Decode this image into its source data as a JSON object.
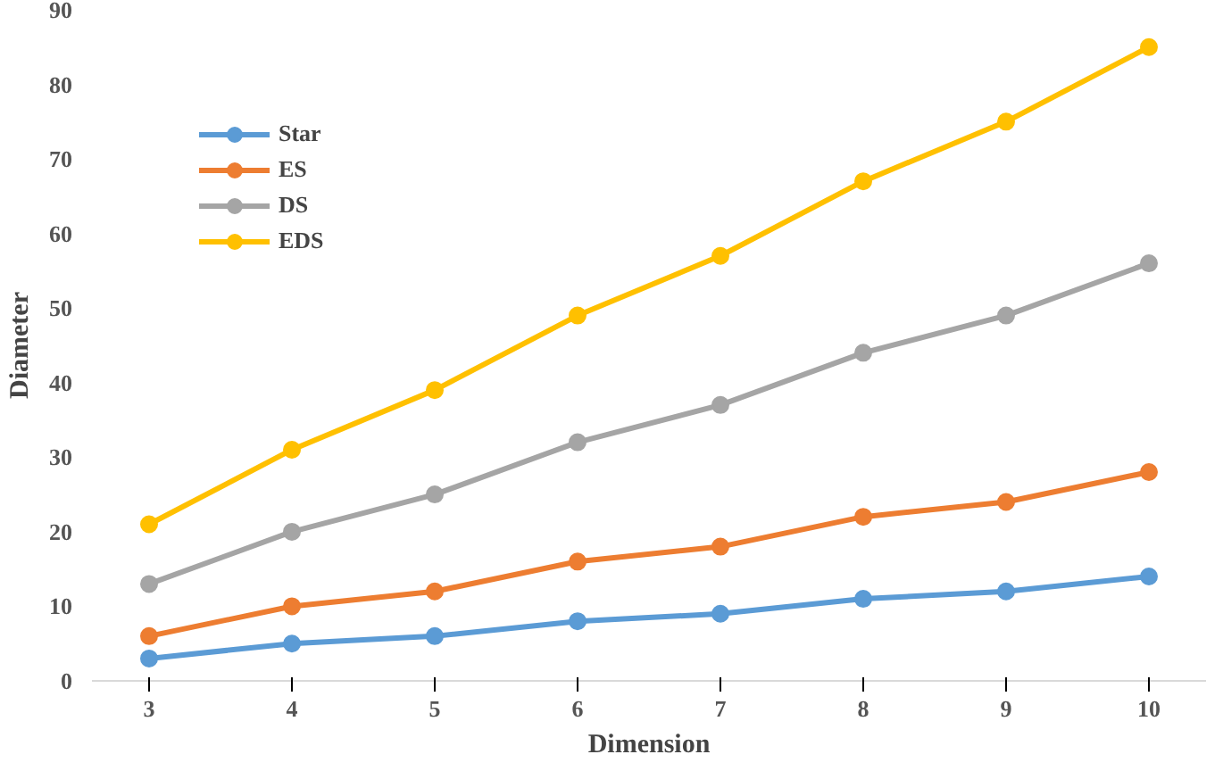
{
  "chart_data": {
    "type": "line",
    "xlabel": "Dimension",
    "ylabel": "Diameter",
    "x": [
      3,
      4,
      5,
      6,
      7,
      8,
      9,
      10
    ],
    "xlim": [
      2.6,
      10.4
    ],
    "xticks": [
      3,
      4,
      5,
      6,
      7,
      8,
      9,
      10
    ],
    "ylim": [
      0,
      90
    ],
    "yticks": [
      0,
      10,
      20,
      30,
      40,
      50,
      60,
      70,
      80,
      90
    ],
    "grid": false,
    "legend": "top left",
    "marker": "circle",
    "line_style": "solid",
    "series": [
      {
        "name": "Star",
        "color": "#5b9bd5",
        "values": [
          3,
          5,
          6,
          8,
          9,
          11,
          12,
          14
        ]
      },
      {
        "name": "ES",
        "color": "#ed7d31",
        "values": [
          6,
          10,
          12,
          16,
          18,
          22,
          24,
          28
        ]
      },
      {
        "name": "DS",
        "color": "#a5a5a5",
        "values": [
          13,
          20,
          25,
          32,
          37,
          44,
          49,
          56
        ]
      },
      {
        "name": "EDS",
        "color": "#ffc000",
        "values": [
          21,
          31,
          39,
          49,
          57,
          67,
          75,
          85
        ]
      }
    ]
  }
}
